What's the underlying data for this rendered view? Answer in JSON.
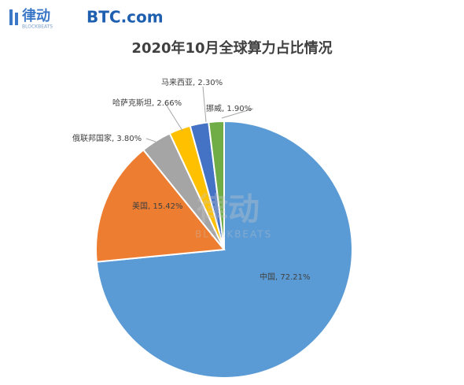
{
  "header": {
    "brand_cn": "律动",
    "brand_en": "BLOCKBEATS",
    "partner": "BTC.com"
  },
  "watermark": {
    "cn": "律动",
    "en": "BLOCKBEATS"
  },
  "chart_data": {
    "type": "pie",
    "title": "2020年10月全球算力占比情况",
    "values": [
      72.21,
      15.42,
      3.8,
      2.66,
      2.3,
      1.9
    ],
    "value_labels": [
      "中国, 72.21%",
      "美国, 15.42%",
      "俄联邦国家, 3.80%",
      "哈萨克斯坦, 2.66%",
      "马来西亚, 2.30%",
      "挪威, 1.90%"
    ],
    "colors": [
      "#5b9bd5",
      "#ed7d31",
      "#a5a5a5",
      "#ffc000",
      "#4472c4",
      "#70ad47"
    ]
  }
}
